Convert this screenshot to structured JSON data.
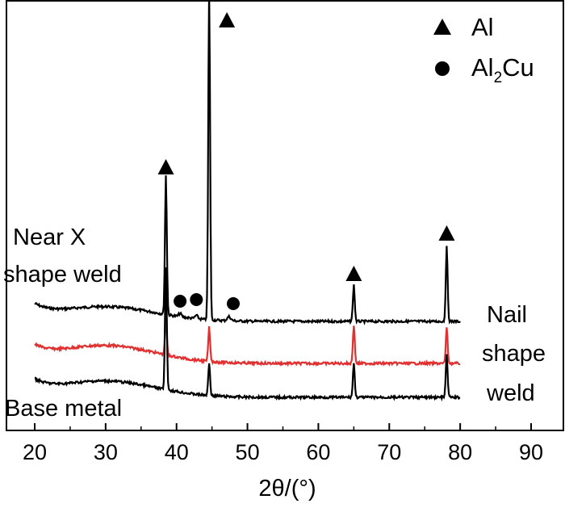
{
  "chart_data": {
    "type": "line",
    "xlabel": "2θ/(°)",
    "xlim": [
      17,
      96
    ],
    "x_ticks": [
      "20",
      "30",
      "40",
      "50",
      "60",
      "70",
      "80",
      "90"
    ],
    "y_axis_ticks_visible": false,
    "grid": false,
    "legend": {
      "placement": "top-right",
      "entries": [
        {
          "marker": "triangle",
          "label": "Al"
        },
        {
          "marker": "circle",
          "label": "Al",
          "subscript": "2",
          "label_suffix": "Cu"
        }
      ]
    },
    "series": [
      {
        "name": "Near X shape weld",
        "color": "#000000",
        "peaks": [
          38.5,
          44.6,
          65.0,
          78.1
        ]
      },
      {
        "name": "Nail shape weld",
        "color": "#e03030",
        "peaks": [
          38.5,
          44.6,
          65.0,
          78.1
        ]
      },
      {
        "name": "Base metal",
        "color": "#000000",
        "peaks": [
          38.5,
          44.6,
          65.0,
          78.1
        ]
      }
    ],
    "peak_markers": [
      {
        "phase": "Al",
        "x": 38.5
      },
      {
        "phase": "Al",
        "x": 44.6
      },
      {
        "phase": "Al",
        "x": 65.0
      },
      {
        "phase": "Al",
        "x": 78.1
      },
      {
        "phase": "Al2Cu",
        "x": 40.5
      },
      {
        "phase": "Al2Cu",
        "x": 42.8
      },
      {
        "phase": "Al2Cu",
        "x": 48.0
      }
    ],
    "annotations": {
      "near_x": [
        "Near X",
        "shape weld"
      ],
      "nail": [
        "Nail",
        "shape",
        "weld"
      ],
      "base": "Base metal"
    }
  }
}
